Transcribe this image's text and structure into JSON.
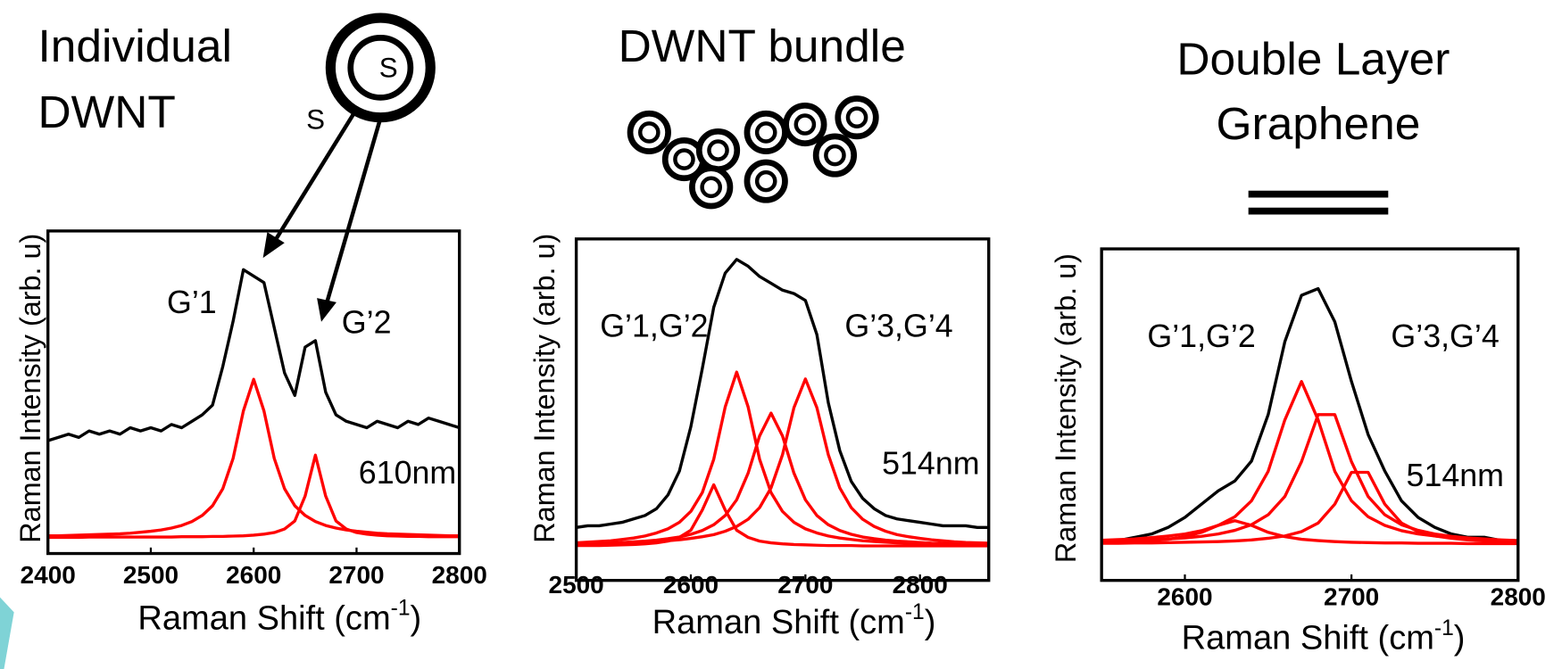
{
  "chart_data": [
    {
      "type": "line",
      "title": [
        "Individual",
        "DWNT"
      ],
      "ylabel": "Raman Intensity (arb. u)",
      "xlabel": [
        "Raman Shift (cm",
        "-1",
        ")"
      ],
      "annotations": [
        "S",
        "S",
        "G’1",
        "G’2",
        "610nm"
      ],
      "xlim": [
        2400,
        2800
      ],
      "xticks": [
        2400,
        2500,
        2600,
        2700,
        2800
      ],
      "ylim": [
        0,
        1
      ],
      "x": [
        2400,
        2410,
        2420,
        2430,
        2440,
        2450,
        2460,
        2470,
        2480,
        2490,
        2500,
        2510,
        2520,
        2530,
        2540,
        2550,
        2560,
        2570,
        2580,
        2590,
        2600,
        2610,
        2620,
        2630,
        2640,
        2650,
        2660,
        2670,
        2680,
        2690,
        2700,
        2710,
        2720,
        2730,
        2740,
        2750,
        2760,
        2770,
        2780,
        2790,
        2800
      ],
      "series": [
        {
          "color": "#000000",
          "values": [
            0.35,
            0.36,
            0.37,
            0.36,
            0.38,
            0.37,
            0.38,
            0.37,
            0.39,
            0.38,
            0.39,
            0.38,
            0.4,
            0.39,
            0.41,
            0.43,
            0.46,
            0.58,
            0.72,
            0.88,
            0.86,
            0.84,
            0.7,
            0.56,
            0.49,
            0.64,
            0.66,
            0.5,
            0.43,
            0.41,
            0.4,
            0.39,
            0.41,
            0.4,
            0.39,
            0.41,
            0.4,
            0.42,
            0.41,
            0.4,
            0.39
          ]
        },
        {
          "color": "#ff0000",
          "values": [
            0.055,
            0.055,
            0.056,
            0.057,
            0.058,
            0.059,
            0.06,
            0.061,
            0.063,
            0.066,
            0.069,
            0.073,
            0.079,
            0.087,
            0.099,
            0.118,
            0.148,
            0.201,
            0.295,
            0.442,
            0.54,
            0.442,
            0.295,
            0.201,
            0.148,
            0.118,
            0.099,
            0.087,
            0.079,
            0.073,
            0.069,
            0.066,
            0.063,
            0.061,
            0.06,
            0.059,
            0.058,
            0.057,
            0.056,
            0.055,
            0.055
          ]
        },
        {
          "color": "#ff0000",
          "values": [
            0.05,
            0.05,
            0.05,
            0.05,
            0.051,
            0.051,
            0.051,
            0.051,
            0.051,
            0.051,
            0.051,
            0.051,
            0.051,
            0.052,
            0.052,
            0.052,
            0.053,
            0.053,
            0.054,
            0.055,
            0.057,
            0.06,
            0.065,
            0.076,
            0.101,
            0.178,
            0.305,
            0.178,
            0.101,
            0.076,
            0.065,
            0.06,
            0.057,
            0.055,
            0.054,
            0.053,
            0.053,
            0.052,
            0.052,
            0.052,
            0.052
          ]
        }
      ]
    },
    {
      "type": "line",
      "title": [
        "DWNT bundle"
      ],
      "ylabel": "Raman Intensity (arb. u)",
      "xlabel": [
        "Raman Shift (cm",
        "-1",
        ")"
      ],
      "annotations": [
        "G’1,G’2",
        "G’3,G’4",
        "514nm"
      ],
      "xlim": [
        2500,
        2860
      ],
      "xticks": [
        2500,
        2600,
        2700,
        2800
      ],
      "ylim": [
        0,
        1
      ],
      "x": [
        2500,
        2510,
        2520,
        2530,
        2540,
        2550,
        2560,
        2570,
        2580,
        2590,
        2600,
        2610,
        2620,
        2630,
        2640,
        2650,
        2660,
        2670,
        2680,
        2690,
        2700,
        2710,
        2720,
        2730,
        2740,
        2750,
        2760,
        2770,
        2780,
        2790,
        2800,
        2810,
        2820,
        2830,
        2840,
        2850,
        2860
      ],
      "series": [
        {
          "color": "#000000",
          "values": [
            0.155,
            0.16,
            0.16,
            0.165,
            0.17,
            0.18,
            0.19,
            0.21,
            0.25,
            0.32,
            0.45,
            0.62,
            0.8,
            0.9,
            0.94,
            0.92,
            0.89,
            0.87,
            0.85,
            0.84,
            0.82,
            0.72,
            0.52,
            0.38,
            0.29,
            0.24,
            0.21,
            0.19,
            0.18,
            0.175,
            0.17,
            0.165,
            0.16,
            0.16,
            0.16,
            0.155,
            0.155
          ]
        },
        {
          "color": "#ff0000",
          "values": [
            0.102,
            0.102,
            0.102,
            0.103,
            0.104,
            0.105,
            0.107,
            0.11,
            0.115,
            0.126,
            0.147,
            0.206,
            0.28,
            0.206,
            0.147,
            0.126,
            0.115,
            0.11,
            0.107,
            0.105,
            0.104,
            0.103,
            0.102,
            0.102,
            0.102,
            0.101,
            0.101,
            0.101,
            0.101,
            0.101,
            0.101,
            0.101,
            0.101,
            0.101,
            0.101,
            0.101,
            0.101
          ]
        },
        {
          "color": "#ff0000",
          "values": [
            0.11,
            0.112,
            0.114,
            0.116,
            0.12,
            0.124,
            0.13,
            0.139,
            0.151,
            0.17,
            0.202,
            0.257,
            0.355,
            0.508,
            0.61,
            0.508,
            0.355,
            0.257,
            0.202,
            0.17,
            0.151,
            0.139,
            0.13,
            0.124,
            0.12,
            0.116,
            0.114,
            0.112,
            0.11,
            0.109,
            0.108,
            0.107,
            0.106,
            0.106,
            0.105,
            0.105,
            0.104
          ]
        },
        {
          "color": "#ff0000",
          "values": [
            0.106,
            0.107,
            0.108,
            0.109,
            0.111,
            0.113,
            0.115,
            0.118,
            0.122,
            0.127,
            0.135,
            0.146,
            0.163,
            0.19,
            0.236,
            0.314,
            0.423,
            0.49,
            0.423,
            0.314,
            0.236,
            0.19,
            0.163,
            0.146,
            0.135,
            0.127,
            0.122,
            0.118,
            0.115,
            0.113,
            0.111,
            0.109,
            0.108,
            0.107,
            0.106,
            0.106,
            0.105
          ]
        },
        {
          "color": "#ff0000",
          "values": [
            0.106,
            0.106,
            0.107,
            0.107,
            0.109,
            0.11,
            0.111,
            0.113,
            0.116,
            0.119,
            0.123,
            0.128,
            0.134,
            0.144,
            0.158,
            0.179,
            0.213,
            0.271,
            0.368,
            0.506,
            0.59,
            0.506,
            0.368,
            0.271,
            0.213,
            0.179,
            0.158,
            0.144,
            0.134,
            0.128,
            0.123,
            0.119,
            0.116,
            0.113,
            0.111,
            0.11,
            0.109
          ]
        }
      ]
    },
    {
      "type": "line",
      "title": [
        "Double Layer",
        "Graphene"
      ],
      "ylabel": "Raman Intensity (arb. u)",
      "xlabel": [
        "Raman Shift (cm",
        "-1",
        ")"
      ],
      "annotations": [
        "G’1,G’2",
        "G’3,G’4",
        "514nm"
      ],
      "xlim": [
        2550,
        2800
      ],
      "xticks": [
        2600,
        2700,
        2800
      ],
      "ylim": [
        0,
        1
      ],
      "x": [
        2550,
        2560,
        2570,
        2580,
        2590,
        2600,
        2610,
        2620,
        2630,
        2640,
        2650,
        2660,
        2670,
        2680,
        2690,
        2700,
        2710,
        2720,
        2730,
        2740,
        2750,
        2760,
        2770,
        2780,
        2790,
        2800
      ],
      "series": [
        {
          "color": "#000000",
          "values": [
            0.12,
            0.12,
            0.13,
            0.14,
            0.16,
            0.19,
            0.23,
            0.27,
            0.3,
            0.36,
            0.5,
            0.72,
            0.86,
            0.88,
            0.78,
            0.6,
            0.44,
            0.33,
            0.24,
            0.19,
            0.16,
            0.14,
            0.13,
            0.13,
            0.12,
            0.12
          ]
        },
        {
          "color": "#ff0000",
          "values": [
            0.114,
            0.115,
            0.117,
            0.12,
            0.124,
            0.132,
            0.145,
            0.166,
            0.18,
            0.166,
            0.145,
            0.132,
            0.124,
            0.12,
            0.117,
            0.115,
            0.114,
            0.113,
            0.113,
            0.112,
            0.112,
            0.112,
            0.111,
            0.111,
            0.111,
            0.111
          ]
        },
        {
          "color": "#ff0000",
          "values": [
            0.121,
            0.123,
            0.125,
            0.129,
            0.134,
            0.14,
            0.15,
            0.166,
            0.192,
            0.24,
            0.329,
            0.484,
            0.6,
            0.484,
            0.329,
            0.24,
            0.192,
            0.166,
            0.15,
            0.14,
            0.134,
            0.129,
            0.125,
            0.123,
            0.121,
            0.119
          ]
        },
        {
          "color": "#ff0000",
          "values": [
            0.117,
            0.119,
            0.12,
            0.122,
            0.125,
            0.128,
            0.133,
            0.14,
            0.151,
            0.168,
            0.198,
            0.253,
            0.358,
            0.5,
            0.5,
            0.358,
            0.253,
            0.198,
            0.168,
            0.151,
            0.14,
            0.133,
            0.128,
            0.125,
            0.122,
            0.12
          ]
        },
        {
          "color": "#ff0000",
          "values": [
            0.112,
            0.112,
            0.113,
            0.113,
            0.114,
            0.115,
            0.116,
            0.117,
            0.119,
            0.122,
            0.127,
            0.134,
            0.147,
            0.173,
            0.23,
            0.326,
            0.326,
            0.23,
            0.173,
            0.147,
            0.134,
            0.127,
            0.122,
            0.119,
            0.117,
            0.116
          ]
        }
      ]
    }
  ]
}
